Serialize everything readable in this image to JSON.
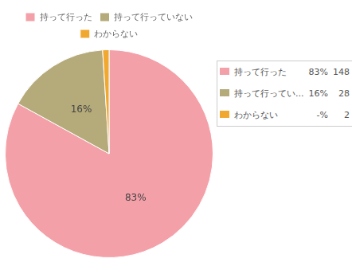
{
  "chart_data": {
    "type": "pie",
    "categories": [
      "持って行った",
      "持って行っていない",
      "わからない"
    ],
    "values": [
      83,
      16,
      1
    ],
    "colors": [
      "#f4a0a8",
      "#b5aa7a",
      "#f0a830"
    ],
    "value_labels": [
      "83%",
      "16%",
      null
    ],
    "data_labels": true,
    "legend": "top",
    "table": {
      "labels": [
        "持って行った",
        "持って行ってい...",
        "わからない"
      ],
      "value_labels": [
        "83%",
        "16%",
        "-%"
      ],
      "counts": [
        148,
        28,
        2
      ]
    }
  }
}
